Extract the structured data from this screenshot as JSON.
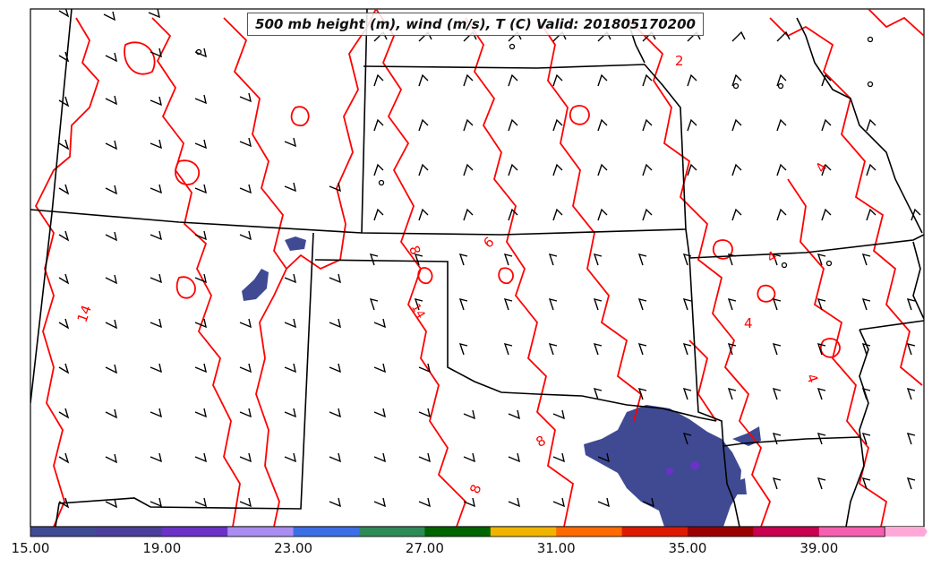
{
  "title": "500 mb height (m), wind (m/s), T (C) Valid: 201805170200",
  "contour_labels": [
    "2",
    "4",
    "4",
    "4",
    "4",
    "6",
    "8",
    "8",
    "8",
    "14",
    "14"
  ],
  "colorbar": {
    "tick_labels": [
      "15.00",
      "19.00",
      "23.00",
      "27.00",
      "31.00",
      "35.00",
      "39.00"
    ],
    "colors": [
      "#3f4a93",
      "#4b3f9b",
      "#6a32c6",
      "#a98df0",
      "#3c6fe6",
      "#2e8b57",
      "#006400",
      "#f0b400",
      "#ff6a00",
      "#dd1a00",
      "#9a0000",
      "#c8004f",
      "#f55fb0",
      "#ffa8d8"
    ]
  },
  "colors": {
    "contour": "#ff0000",
    "border": "#000000",
    "precip": "#3f4a93"
  }
}
